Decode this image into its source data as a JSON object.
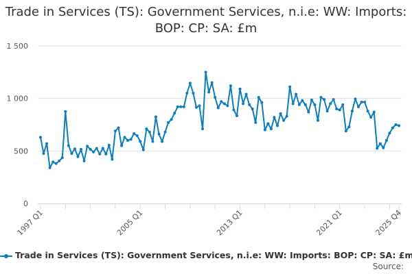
{
  "chart_data": {
    "type": "line",
    "title": "Trade in Services (TS): Government Services, n.i.e: WW: Imports: BOP: CP: SA: £m",
    "xlabel": "",
    "ylabel": "",
    "x_start": "1997 Q1",
    "x_end": "2025 Q4",
    "x_tick_labels": [
      "1997 Q1",
      "2005 Q1",
      "2013 Q1",
      "2021 Q1",
      "2025 Q4"
    ],
    "y_tick_labels": [
      "0",
      "500",
      "1 000",
      "1 500"
    ],
    "ylim": [
      0,
      1500
    ],
    "grid": true,
    "legend_position": "bottom",
    "color": "#0a7dc2",
    "series": [
      {
        "name": "Trade in Services (TS): Government Services, n.i.e: WW: Imports: BOP: CP: SA: £m",
        "values": [
          630,
          475,
          570,
          340,
          395,
          380,
          405,
          435,
          875,
          550,
          475,
          520,
          445,
          515,
          405,
          545,
          515,
          490,
          525,
          470,
          525,
          470,
          555,
          420,
          690,
          720,
          550,
          630,
          600,
          610,
          665,
          645,
          590,
          510,
          710,
          680,
          590,
          825,
          660,
          590,
          680,
          770,
          800,
          860,
          920,
          920,
          920,
          1050,
          1145,
          1050,
          915,
          930,
          710,
          1250,
          1060,
          1150,
          1010,
          910,
          970,
          950,
          930,
          1120,
          890,
          835,
          1090,
          950,
          1040,
          940,
          900,
          770,
          1010,
          960,
          700,
          760,
          710,
          820,
          740,
          855,
          790,
          830,
          1110,
          950,
          1040,
          940,
          980,
          940,
          870,
          985,
          940,
          790,
          1010,
          990,
          880,
          950,
          990,
          900,
          890,
          940,
          690,
          730,
          880,
          995,
          920,
          965,
          965,
          880,
          820,
          870,
          525,
          570,
          530,
          600,
          670,
          720,
          750,
          740
        ]
      }
    ]
  },
  "source_label": "Source:"
}
